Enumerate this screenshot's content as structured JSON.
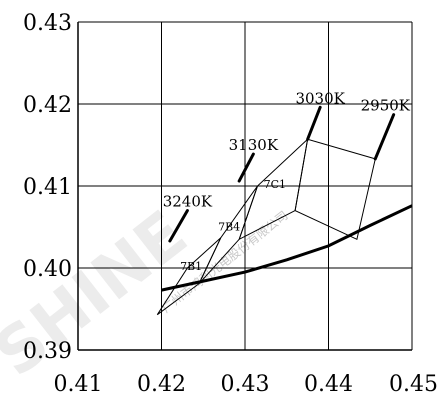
{
  "chart_data": {
    "type": "line",
    "xlim": [
      0.41,
      0.45
    ],
    "ylim": [
      0.39,
      0.43
    ],
    "x_ticks": [
      "0.41",
      "0.42",
      "0.43",
      "0.44",
      "0.45"
    ],
    "y_ticks": [
      "0.39",
      "0.40",
      "0.41",
      "0.42",
      "0.43"
    ],
    "grid": true,
    "locus": {
      "x": [
        0.42,
        0.425,
        0.43,
        0.435,
        0.44,
        0.445,
        0.45
      ],
      "y": [
        0.3973,
        0.3984,
        0.3995,
        0.401,
        0.4027,
        0.4052,
        0.4076
      ]
    },
    "bins": [
      {
        "label": "7B1",
        "corners": [
          [
            0.4195,
            0.3943
          ],
          [
            0.4231,
            0.4
          ],
          [
            0.4271,
            0.4037
          ],
          [
            0.4245,
            0.3981
          ]
        ]
      },
      {
        "label": "7B4",
        "corners": [
          [
            0.4245,
            0.3981
          ],
          [
            0.4271,
            0.4037
          ],
          [
            0.4315,
            0.41
          ],
          [
            0.4293,
            0.4035
          ]
        ]
      },
      {
        "label": "7C1",
        "corners": [
          [
            0.4293,
            0.4035
          ],
          [
            0.4315,
            0.41
          ],
          [
            0.4375,
            0.4157
          ],
          [
            0.436,
            0.407
          ]
        ]
      },
      {
        "label": "",
        "corners": [
          [
            0.436,
            0.407
          ],
          [
            0.4375,
            0.4157
          ],
          [
            0.4456,
            0.4133
          ],
          [
            0.4434,
            0.4035
          ]
        ]
      }
    ],
    "cct_lines": [
      {
        "label": "3240K",
        "x": [
          0.421,
          0.4231
        ],
        "y": [
          0.4033,
          0.407
        ]
      },
      {
        "label": "3130K",
        "x": [
          0.4293,
          0.431
        ],
        "y": [
          0.4106,
          0.4139
        ]
      },
      {
        "label": "3030K",
        "x": [
          0.4375,
          0.439
        ],
        "y": [
          0.4157,
          0.4196
        ]
      },
      {
        "label": "2950K",
        "x": [
          0.4456,
          0.4478
        ],
        "y": [
          0.4133,
          0.4187
        ]
      }
    ]
  },
  "watermark": {
    "text": "广州市鸿利光电股份有限公司",
    "logo": "SHINE"
  }
}
